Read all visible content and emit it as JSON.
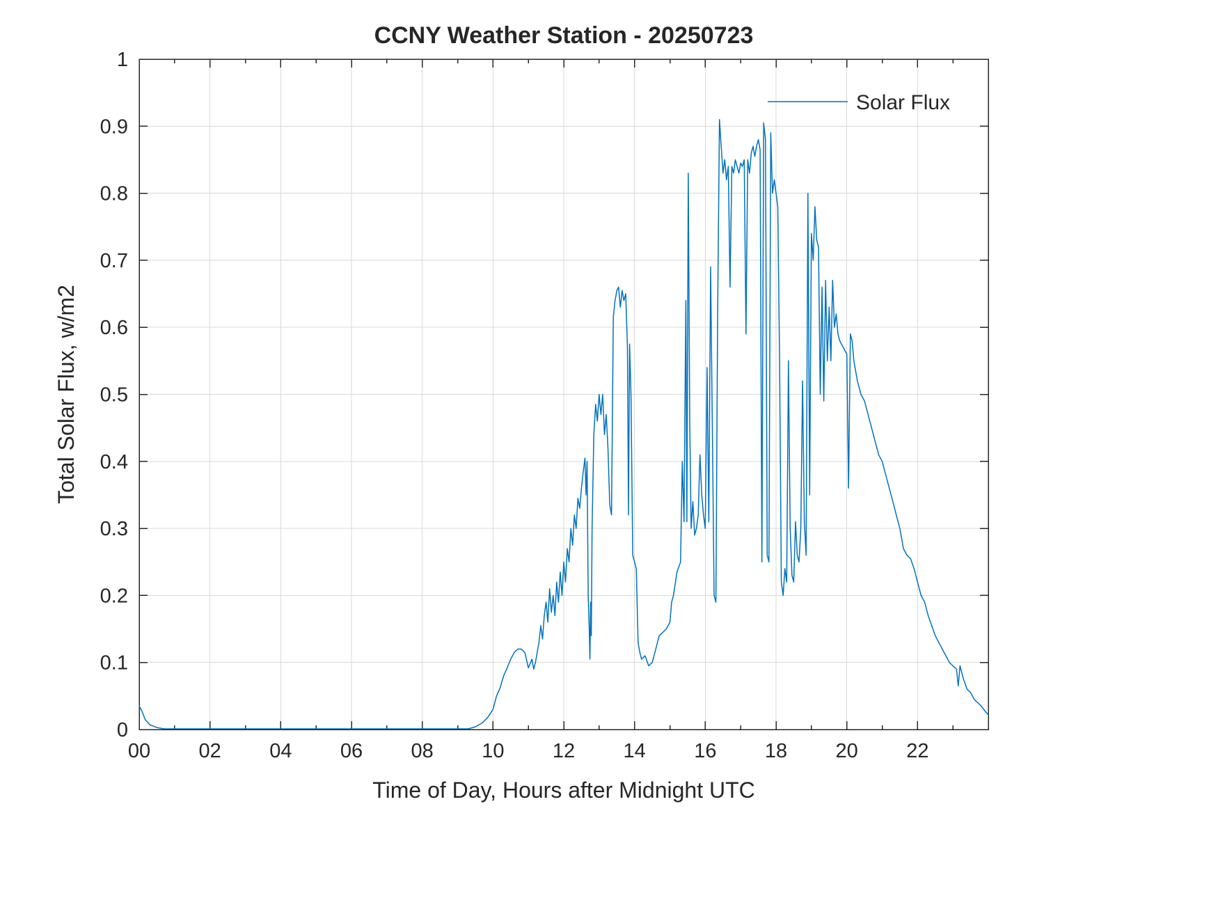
{
  "figure": {
    "background": "#ffffff"
  },
  "chart_data": {
    "type": "line",
    "title": "CCNY Weather Station - 20250723",
    "xlabel": "Time of Day, Hours after Midnight UTC",
    "ylabel": "Total Solar Flux, w/m2",
    "xlim": [
      0,
      24
    ],
    "ylim": [
      0,
      1
    ],
    "grid": true,
    "grid_color": "#d9d9d9",
    "axis_color": "#262626",
    "xticks": [
      0,
      2,
      4,
      6,
      8,
      10,
      12,
      14,
      16,
      18,
      20,
      22
    ],
    "xtick_labels": [
      "00",
      "02",
      "04",
      "06",
      "08",
      "10",
      "12",
      "14",
      "16",
      "18",
      "20",
      "22"
    ],
    "xminorticks": [
      1,
      3,
      5,
      7,
      9,
      11,
      13,
      15,
      17,
      19,
      21,
      23
    ],
    "yticks": [
      0,
      0.1,
      0.2,
      0.3,
      0.4,
      0.5,
      0.6,
      0.7,
      0.8,
      0.9,
      1
    ],
    "ytick_labels": [
      "0",
      "0.1",
      "0.2",
      "0.3",
      "0.4",
      "0.5",
      "0.6",
      "0.7",
      "0.8",
      "0.9",
      "1"
    ],
    "legend": {
      "position": "top-right",
      "entries": [
        {
          "name": "Solar Flux",
          "color": "#0072BD"
        }
      ]
    },
    "series": [
      {
        "name": "Solar Flux",
        "color": "#0072BD",
        "points": [
          [
            0,
            0.035
          ],
          [
            0.08,
            0.027
          ],
          [
            0.17,
            0.015
          ],
          [
            0.3,
            0.007
          ],
          [
            0.5,
            0.003
          ],
          [
            0.7,
            0.001
          ],
          [
            1,
            0.001
          ],
          [
            1.5,
            0.001
          ],
          [
            2,
            0.001
          ],
          [
            2.5,
            0.001
          ],
          [
            3,
            0.001
          ],
          [
            3.5,
            0.001
          ],
          [
            4,
            0.001
          ],
          [
            4.5,
            0.001
          ],
          [
            5,
            0.001
          ],
          [
            5.5,
            0.001
          ],
          [
            6,
            0.001
          ],
          [
            6.5,
            0.001
          ],
          [
            7,
            0.001
          ],
          [
            7.5,
            0.001
          ],
          [
            8,
            0.001
          ],
          [
            8.5,
            0.001
          ],
          [
            9,
            0.001
          ],
          [
            9.3,
            0.001
          ],
          [
            9.5,
            0.004
          ],
          [
            9.7,
            0.01
          ],
          [
            9.85,
            0.018
          ],
          [
            10,
            0.03
          ],
          [
            10.1,
            0.05
          ],
          [
            10.2,
            0.062
          ],
          [
            10.3,
            0.08
          ],
          [
            10.4,
            0.092
          ],
          [
            10.5,
            0.105
          ],
          [
            10.6,
            0.115
          ],
          [
            10.7,
            0.12
          ],
          [
            10.8,
            0.12
          ],
          [
            10.9,
            0.115
          ],
          [
            11,
            0.092
          ],
          [
            11.1,
            0.105
          ],
          [
            11.15,
            0.09
          ],
          [
            11.2,
            0.1
          ],
          [
            11.3,
            0.13
          ],
          [
            11.35,
            0.155
          ],
          [
            11.4,
            0.135
          ],
          [
            11.45,
            0.17
          ],
          [
            11.5,
            0.19
          ],
          [
            11.55,
            0.16
          ],
          [
            11.6,
            0.21
          ],
          [
            11.65,
            0.175
          ],
          [
            11.7,
            0.2
          ],
          [
            11.75,
            0.17
          ],
          [
            11.8,
            0.22
          ],
          [
            11.85,
            0.19
          ],
          [
            11.9,
            0.235
          ],
          [
            11.95,
            0.2
          ],
          [
            12,
            0.25
          ],
          [
            12.05,
            0.22
          ],
          [
            12.1,
            0.27
          ],
          [
            12.15,
            0.25
          ],
          [
            12.2,
            0.3
          ],
          [
            12.25,
            0.275
          ],
          [
            12.3,
            0.32
          ],
          [
            12.35,
            0.3
          ],
          [
            12.4,
            0.345
          ],
          [
            12.45,
            0.33
          ],
          [
            12.5,
            0.36
          ],
          [
            12.55,
            0.385
          ],
          [
            12.6,
            0.405
          ],
          [
            12.63,
            0.35
          ],
          [
            12.66,
            0.4
          ],
          [
            12.69,
            0.2
          ],
          [
            12.72,
            0.15
          ],
          [
            12.74,
            0.105
          ],
          [
            12.76,
            0.19
          ],
          [
            12.78,
            0.14
          ],
          [
            12.8,
            0.3
          ],
          [
            12.85,
            0.44
          ],
          [
            12.9,
            0.485
          ],
          [
            12.95,
            0.46
          ],
          [
            13,
            0.5
          ],
          [
            13.05,
            0.47
          ],
          [
            13.1,
            0.5
          ],
          [
            13.15,
            0.44
          ],
          [
            13.2,
            0.47
          ],
          [
            13.25,
            0.42
          ],
          [
            13.3,
            0.335
          ],
          [
            13.35,
            0.32
          ],
          [
            13.4,
            0.615
          ],
          [
            13.45,
            0.64
          ],
          [
            13.5,
            0.655
          ],
          [
            13.55,
            0.66
          ],
          [
            13.6,
            0.63
          ],
          [
            13.65,
            0.655
          ],
          [
            13.7,
            0.64
          ],
          [
            13.75,
            0.65
          ],
          [
            13.8,
            0.57
          ],
          [
            13.83,
            0.32
          ],
          [
            13.86,
            0.575
          ],
          [
            13.9,
            0.5
          ],
          [
            13.95,
            0.26
          ],
          [
            14,
            0.25
          ],
          [
            14.05,
            0.24
          ],
          [
            14.1,
            0.13
          ],
          [
            14.15,
            0.115
          ],
          [
            14.2,
            0.105
          ],
          [
            14.3,
            0.11
          ],
          [
            14.4,
            0.095
          ],
          [
            14.5,
            0.1
          ],
          [
            14.6,
            0.12
          ],
          [
            14.7,
            0.14
          ],
          [
            14.8,
            0.145
          ],
          [
            14.9,
            0.15
          ],
          [
            15,
            0.16
          ],
          [
            15.05,
            0.19
          ],
          [
            15.1,
            0.2
          ],
          [
            15.2,
            0.235
          ],
          [
            15.3,
            0.25
          ],
          [
            15.35,
            0.4
          ],
          [
            15.4,
            0.31
          ],
          [
            15.45,
            0.64
          ],
          [
            15.48,
            0.31
          ],
          [
            15.52,
            0.83
          ],
          [
            15.56,
            0.46
          ],
          [
            15.6,
            0.3
          ],
          [
            15.65,
            0.34
          ],
          [
            15.7,
            0.29
          ],
          [
            15.75,
            0.3
          ],
          [
            15.8,
            0.32
          ],
          [
            15.85,
            0.41
          ],
          [
            15.9,
            0.35
          ],
          [
            15.95,
            0.32
          ],
          [
            16,
            0.3
          ],
          [
            16.05,
            0.54
          ],
          [
            16.1,
            0.31
          ],
          [
            16.15,
            0.69
          ],
          [
            16.2,
            0.45
          ],
          [
            16.25,
            0.2
          ],
          [
            16.3,
            0.19
          ],
          [
            16.35,
            0.62
          ],
          [
            16.4,
            0.91
          ],
          [
            16.45,
            0.87
          ],
          [
            16.5,
            0.83
          ],
          [
            16.55,
            0.85
          ],
          [
            16.6,
            0.82
          ],
          [
            16.65,
            0.84
          ],
          [
            16.7,
            0.66
          ],
          [
            16.75,
            0.84
          ],
          [
            16.8,
            0.83
          ],
          [
            16.85,
            0.85
          ],
          [
            16.9,
            0.84
          ],
          [
            16.95,
            0.83
          ],
          [
            17,
            0.845
          ],
          [
            17.05,
            0.84
          ],
          [
            17.1,
            0.85
          ],
          [
            17.15,
            0.59
          ],
          [
            17.2,
            0.85
          ],
          [
            17.25,
            0.83
          ],
          [
            17.3,
            0.86
          ],
          [
            17.35,
            0.87
          ],
          [
            17.4,
            0.855
          ],
          [
            17.45,
            0.87
          ],
          [
            17.5,
            0.88
          ],
          [
            17.55,
            0.865
          ],
          [
            17.6,
            0.25
          ],
          [
            17.65,
            0.905
          ],
          [
            17.7,
            0.88
          ],
          [
            17.75,
            0.26
          ],
          [
            17.8,
            0.25
          ],
          [
            17.85,
            0.89
          ],
          [
            17.9,
            0.8
          ],
          [
            17.95,
            0.82
          ],
          [
            18,
            0.8
          ],
          [
            18.05,
            0.78
          ],
          [
            18.1,
            0.55
          ],
          [
            18.15,
            0.22
          ],
          [
            18.2,
            0.2
          ],
          [
            18.25,
            0.24
          ],
          [
            18.3,
            0.22
          ],
          [
            18.35,
            0.55
          ],
          [
            18.4,
            0.3
          ],
          [
            18.45,
            0.23
          ],
          [
            18.5,
            0.22
          ],
          [
            18.55,
            0.31
          ],
          [
            18.6,
            0.26
          ],
          [
            18.65,
            0.25
          ],
          [
            18.7,
            0.3
          ],
          [
            18.75,
            0.52
          ],
          [
            18.8,
            0.31
          ],
          [
            18.85,
            0.26
          ],
          [
            18.9,
            0.8
          ],
          [
            18.95,
            0.35
          ],
          [
            19,
            0.74
          ],
          [
            19.05,
            0.7
          ],
          [
            19.1,
            0.78
          ],
          [
            19.15,
            0.73
          ],
          [
            19.2,
            0.72
          ],
          [
            19.25,
            0.5
          ],
          [
            19.3,
            0.66
          ],
          [
            19.35,
            0.49
          ],
          [
            19.4,
            0.67
          ],
          [
            19.45,
            0.55
          ],
          [
            19.5,
            0.63
          ],
          [
            19.55,
            0.55
          ],
          [
            19.6,
            0.67
          ],
          [
            19.65,
            0.6
          ],
          [
            19.7,
            0.62
          ],
          [
            19.75,
            0.59
          ],
          [
            19.8,
            0.58
          ],
          [
            19.9,
            0.57
          ],
          [
            20,
            0.56
          ],
          [
            20.05,
            0.36
          ],
          [
            20.1,
            0.59
          ],
          [
            20.15,
            0.58
          ],
          [
            20.2,
            0.55
          ],
          [
            20.3,
            0.52
          ],
          [
            20.4,
            0.5
          ],
          [
            20.5,
            0.49
          ],
          [
            20.6,
            0.47
          ],
          [
            20.7,
            0.45
          ],
          [
            20.8,
            0.43
          ],
          [
            20.9,
            0.41
          ],
          [
            21,
            0.4
          ],
          [
            21.1,
            0.38
          ],
          [
            21.2,
            0.36
          ],
          [
            21.3,
            0.34
          ],
          [
            21.4,
            0.32
          ],
          [
            21.5,
            0.3
          ],
          [
            21.6,
            0.27
          ],
          [
            21.7,
            0.26
          ],
          [
            21.8,
            0.255
          ],
          [
            21.9,
            0.24
          ],
          [
            22,
            0.22
          ],
          [
            22.1,
            0.2
          ],
          [
            22.2,
            0.19
          ],
          [
            22.3,
            0.17
          ],
          [
            22.4,
            0.155
          ],
          [
            22.5,
            0.14
          ],
          [
            22.6,
            0.13
          ],
          [
            22.7,
            0.12
          ],
          [
            22.8,
            0.11
          ],
          [
            22.9,
            0.1
          ],
          [
            23,
            0.095
          ],
          [
            23.1,
            0.09
          ],
          [
            23.15,
            0.065
          ],
          [
            23.2,
            0.095
          ],
          [
            23.3,
            0.075
          ],
          [
            23.4,
            0.06
          ],
          [
            23.5,
            0.055
          ],
          [
            23.6,
            0.045
          ],
          [
            23.7,
            0.04
          ],
          [
            23.8,
            0.035
          ],
          [
            23.9,
            0.028
          ],
          [
            24,
            0.022
          ]
        ]
      }
    ]
  }
}
